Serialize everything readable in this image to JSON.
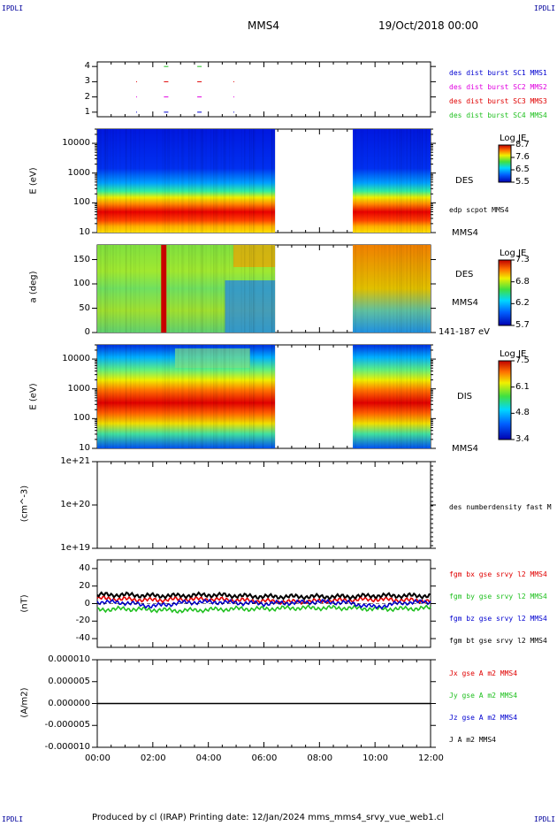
{
  "corners": {
    "tl": "IPDLI",
    "tr": "IPDLI",
    "bl": "IPDLI",
    "br": "IPDLI"
  },
  "header": {
    "spacecraft": "MMS4",
    "date": "19/Oct/2018 00:00"
  },
  "footer": {
    "text": "Produced by cl (IRAP)   Printing date: 12/Jan/2024   mms_mms4_srvy_vue_web1.cl"
  },
  "colors": {
    "red": "#e00000",
    "green": "#20c020",
    "blue": "#0000d0",
    "black": "#000000",
    "magenta": "#e000e0"
  },
  "time_axis": {
    "ticks": [
      "00:00",
      "02:00",
      "04:00",
      "06:00",
      "08:00",
      "10:00",
      "12:00"
    ],
    "range_hours": [
      0,
      12
    ]
  },
  "panels": {
    "burst": {
      "yticks": [
        "4",
        "3",
        "2",
        "1"
      ],
      "legend": [
        "des dist burst SC1 MMS1",
        "des dist burst SC2 MMS2",
        "des dist burst SC3 MMS3",
        "des dist burst SC4 MMS4"
      ]
    },
    "des_energy": {
      "ylabel": "E (eV)",
      "yticks": [
        "10000",
        "1000",
        "100",
        "10"
      ],
      "name": "DES",
      "overlay": "edp scpot MMS4",
      "sc": "MMS4",
      "cbar_title": "Log JE",
      "cbar_ticks": [
        "8.7",
        "7.6",
        "6.5",
        "5.5"
      ]
    },
    "des_pitch": {
      "ylabel": "a (deg)",
      "yticks": [
        "150",
        "100",
        "50",
        "0"
      ],
      "name": "DES",
      "sc": "MMS4",
      "range": "141-187 eV",
      "cbar_title": "Log JE",
      "cbar_ticks": [
        "7.3",
        "6.8",
        "6.2",
        "5.7"
      ]
    },
    "dis_energy": {
      "ylabel": "E (eV)",
      "yticks": [
        "10000",
        "1000",
        "100",
        "10"
      ],
      "name": "DIS",
      "sc": "MMS4",
      "cbar_title": "Log JE",
      "cbar_ticks": [
        "7.5",
        "6.1",
        "4.8",
        "3.4"
      ]
    },
    "density": {
      "ylabel": "(cm^-3)",
      "yticks": [
        "1e+21",
        "1e+20",
        "1e+19"
      ],
      "legend": "des numberdensity fast M"
    },
    "bfield": {
      "ylabel": "(nT)",
      "yticks": [
        "40",
        "20",
        "0",
        "-20",
        "-40"
      ],
      "legend": [
        "fgm bx gse srvy l2 MMS4",
        "fgm by gse srvy l2 MMS4",
        "fgm bz gse srvy l2 MMS4",
        "fgm bt gse srvy l2 MMS4"
      ]
    },
    "current": {
      "ylabel": "(A/m2)",
      "yticks": [
        "0.000010",
        "0.000005",
        "0.000000",
        "-0.000005",
        "-0.000010"
      ],
      "legend": [
        "Jx gse A m2 MMS4",
        "Jy gse A m2 MMS4",
        "Jz gse A m2 MMS4",
        "J A m2 MMS4"
      ]
    }
  },
  "chart_data": [
    {
      "type": "scatter",
      "panel": "burst intervals",
      "x_unit": "hours",
      "series": [
        {
          "name": "des dist burst SC1 MMS1",
          "level": 1,
          "x": [
            1.4,
            2.4,
            3.6,
            4.9
          ]
        },
        {
          "name": "des dist burst SC2 MMS2",
          "level": 2,
          "x": [
            1.4,
            2.4,
            3.6,
            4.9
          ]
        },
        {
          "name": "des dist burst SC3 MMS3",
          "level": 3,
          "x": [
            1.4,
            2.4,
            3.6,
            4.9
          ]
        },
        {
          "name": "des dist burst SC4 MMS4",
          "level": 4,
          "x": [
            2.4,
            3.6
          ]
        }
      ]
    },
    {
      "type": "heatmap",
      "panel": "DES energy spectrogram",
      "ylabel": "E (eV)",
      "yscale": "log",
      "ylim": [
        10,
        30000
      ],
      "data_gaps_hours": [
        [
          6.4,
          9.2
        ]
      ],
      "peak_energy_eV": 50,
      "clim": [
        5.5,
        8.7
      ]
    },
    {
      "type": "heatmap",
      "panel": "DES pitch angle",
      "ylabel": "a (deg)",
      "ylim": [
        0,
        180
      ],
      "data_gaps_hours": [
        [
          6.4,
          9.2
        ]
      ],
      "clim": [
        5.7,
        7.3
      ]
    },
    {
      "type": "heatmap",
      "panel": "DIS energy spectrogram",
      "ylabel": "E (eV)",
      "yscale": "log",
      "ylim": [
        10,
        30000
      ],
      "data_gaps_hours": [
        [
          6.4,
          9.2
        ]
      ],
      "peak_energy_eV": 300,
      "clim": [
        3.4,
        7.5
      ]
    },
    {
      "type": "line",
      "panel": "number density",
      "ylabel": "(cm^-3)",
      "yscale": "log",
      "ylim": [
        1e+19,
        1e+21
      ],
      "series": []
    },
    {
      "type": "line",
      "panel": "magnetic field",
      "ylabel": "(nT)",
      "ylim": [
        -50,
        50
      ],
      "x": [
        0,
        1,
        2,
        3,
        4,
        5,
        6,
        7,
        8,
        9,
        10,
        11,
        12
      ],
      "series": [
        {
          "name": "fgm bx gse srvy l2 MMS4",
          "values": [
            6,
            5,
            4,
            5,
            5,
            4,
            3,
            2,
            3,
            4,
            5,
            4,
            3
          ]
        },
        {
          "name": "fgm by gse srvy l2 MMS4",
          "values": [
            -7,
            -6,
            -7,
            -8,
            -7,
            -6,
            -6,
            -5,
            -5,
            -5,
            -6,
            -6,
            -5
          ]
        },
        {
          "name": "fgm bz gse srvy l2 MMS4",
          "values": [
            2,
            1,
            -3,
            1,
            2,
            1,
            0,
            1,
            2,
            1,
            -4,
            1,
            2
          ]
        },
        {
          "name": "fgm bt gse srvy l2 MMS4",
          "values": [
            10,
            10,
            9,
            9,
            10,
            9,
            8,
            8,
            8,
            8,
            9,
            9,
            9
          ]
        }
      ]
    },
    {
      "type": "line",
      "panel": "current density",
      "ylabel": "(A/m2)",
      "ylim": [
        -1e-05,
        1e-05
      ],
      "x": [
        0,
        12
      ],
      "series": [
        {
          "name": "Jx gse A m2 MMS4",
          "values": [
            0,
            0
          ]
        },
        {
          "name": "Jy gse A m2 MMS4",
          "values": [
            0,
            0
          ]
        },
        {
          "name": "Jz gse A m2 MMS4",
          "values": [
            0,
            0
          ]
        },
        {
          "name": "J A m2 MMS4",
          "values": [
            0,
            0
          ]
        }
      ]
    }
  ]
}
